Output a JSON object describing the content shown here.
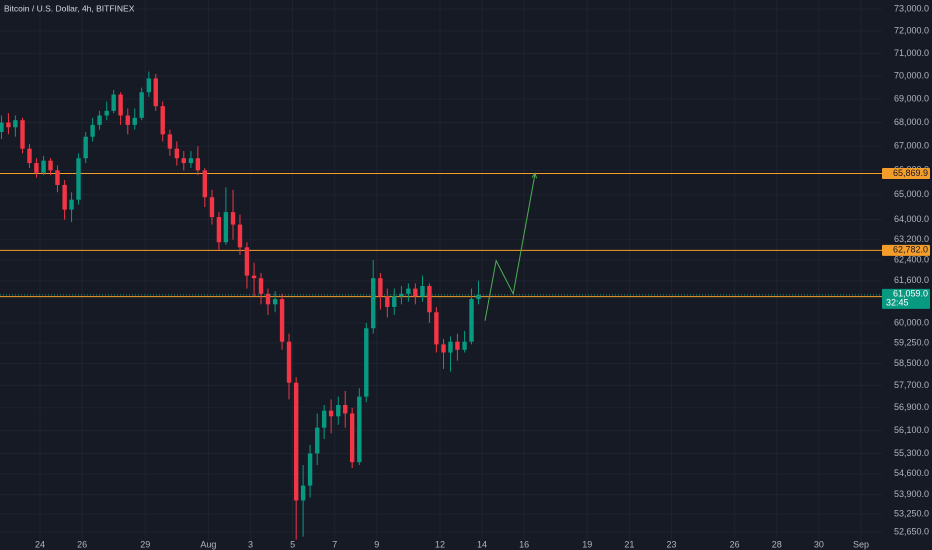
{
  "chart_data": {
    "type": "candlestick",
    "title": "Bitcoin / U.S. Dollar, 4h, BITFINEX",
    "log_scale": true,
    "grid": true,
    "up_color": "#089981",
    "down_color": "#f23645",
    "x": [
      22.17,
      22.5,
      22.83,
      23.17,
      23.5,
      23.83,
      24.17,
      24.5,
      24.83,
      25.17,
      25.5,
      25.83,
      26.17,
      26.5,
      26.83,
      27.17,
      27.5,
      27.83,
      28.17,
      28.5,
      28.83,
      29.17,
      29.5,
      29.83,
      30.17,
      30.5,
      30.83,
      31.17,
      31.5,
      31.83,
      32.17,
      32.5,
      32.83,
      33.17,
      33.5,
      33.83,
      34.17,
      34.5,
      34.83,
      35.17,
      35.5,
      35.83,
      36.17,
      36.5,
      36.83,
      37.17,
      37.5,
      37.83,
      38.17,
      38.5,
      38.83,
      39.17,
      39.5,
      39.83,
      40.17,
      40.5,
      40.83,
      41.17,
      41.5,
      41.83,
      42.17,
      42.5,
      42.83,
      43.17,
      43.5,
      43.83,
      44.17,
      44.5,
      44.83
    ],
    "open": [
      67600,
      68000,
      67800,
      68100,
      66900,
      66300,
      65900,
      66400,
      66000,
      65400,
      64400,
      64800,
      66500,
      67400,
      67900,
      68300,
      68500,
      69200,
      68300,
      67900,
      68200,
      69300,
      69900,
      68700,
      67500,
      66900,
      66500,
      66300,
      66500,
      66000,
      64900,
      64100,
      63100,
      64300,
      63800,
      62900,
      61800,
      61700,
      61100,
      60700,
      60900,
      59300,
      57800,
      53700,
      54200,
      55300,
      56200,
      56800,
      56600,
      57000,
      56700,
      55000,
      57300,
      59800,
      61700,
      61000,
      60600,
      61000,
      61100,
      61300,
      61000,
      61400,
      60400,
      59200,
      58900,
      59300,
      59000,
      59300,
      60900
    ],
    "high": [
      68300,
      68400,
      68300,
      68200,
      67100,
      66500,
      66600,
      66500,
      66200,
      65600,
      65100,
      66700,
      67600,
      68200,
      68500,
      68900,
      69400,
      69300,
      68600,
      68600,
      69500,
      70200,
      70100,
      68900,
      67700,
      67200,
      66800,
      66800,
      67000,
      66100,
      65200,
      64300,
      65300,
      65200,
      64200,
      63100,
      62300,
      61900,
      61300,
      61200,
      61100,
      59600,
      58000,
      54900,
      55600,
      56700,
      57000,
      57200,
      57300,
      57500,
      56900,
      57600,
      60000,
      62400,
      61900,
      61300,
      61300,
      61400,
      61500,
      61500,
      61800,
      61500,
      60600,
      59400,
      59500,
      59600,
      59700,
      61300,
      61600
    ],
    "low": [
      67300,
      67500,
      67400,
      66700,
      66100,
      65700,
      65800,
      65800,
      65100,
      64000,
      63900,
      64600,
      66300,
      67200,
      67700,
      68100,
      68400,
      67900,
      67500,
      67700,
      68100,
      69100,
      68500,
      67200,
      66600,
      66200,
      66000,
      66100,
      65800,
      64500,
      63800,
      62800,
      63000,
      63200,
      62600,
      61300,
      61000,
      60700,
      60300,
      60400,
      59000,
      57200,
      52400,
      52500,
      53800,
      54900,
      55800,
      56000,
      56300,
      56200,
      54800,
      54900,
      57100,
      59600,
      60500,
      60200,
      60300,
      60700,
      60800,
      60700,
      60800,
      60000,
      58900,
      58300,
      58200,
      58600,
      58900,
      59200,
      60700
    ],
    "close": [
      68000,
      67800,
      68100,
      66900,
      66300,
      65900,
      66400,
      66000,
      65400,
      64400,
      64800,
      66500,
      67400,
      67900,
      68300,
      68500,
      69200,
      68300,
      67900,
      68200,
      69300,
      69900,
      68700,
      67500,
      66900,
      66500,
      66300,
      66500,
      66000,
      64900,
      64100,
      63100,
      64300,
      63800,
      62900,
      61800,
      61700,
      61100,
      60700,
      60900,
      59300,
      57800,
      53700,
      54200,
      55300,
      56200,
      56800,
      56600,
      57000,
      56700,
      55000,
      57300,
      59800,
      61700,
      61000,
      60600,
      61000,
      61100,
      61300,
      61000,
      61400,
      60400,
      59200,
      58900,
      59300,
      59000,
      59300,
      60900,
      61059
    ],
    "xlim": [
      22.1,
      64
    ],
    "ylim": [
      52390,
      73410
    ],
    "xticks": [
      24,
      26,
      29,
      {
        "value": 32,
        "label": "Aug"
      },
      {
        "value": 34,
        "label": "3"
      },
      {
        "value": 36,
        "label": "5"
      },
      {
        "value": 38,
        "label": "7"
      },
      {
        "value": 40,
        "label": "9"
      },
      {
        "value": 43,
        "label": "12"
      },
      {
        "value": 45,
        "label": "14"
      },
      {
        "value": 47,
        "label": "16"
      },
      {
        "value": 50,
        "label": "19"
      },
      {
        "value": 52,
        "label": "21"
      },
      {
        "value": 54,
        "label": "23"
      },
      {
        "value": 57,
        "label": "26"
      },
      {
        "value": 59,
        "label": "28"
      },
      {
        "value": 61,
        "label": "30"
      },
      {
        "value": 63,
        "label": "Sep"
      }
    ],
    "yticks": [
      {
        "value": 73000,
        "label": "73,000.0"
      },
      {
        "value": 72000,
        "label": "72,000.0"
      },
      {
        "value": 71000,
        "label": "71,000.0"
      },
      {
        "value": 70000,
        "label": "70,000.0"
      },
      {
        "value": 69000,
        "label": "69,000.0"
      },
      {
        "value": 68000,
        "label": "68,000.0"
      },
      {
        "value": 67000,
        "label": "67,000.0"
      },
      {
        "value": 66000,
        "label": "66,000.0"
      },
      {
        "value": 65000,
        "label": "65,000.0"
      },
      {
        "value": 64000,
        "label": "64,000.0"
      },
      {
        "value": 63200,
        "label": "63,200.0"
      },
      {
        "value": 62400,
        "label": "62,400.0"
      },
      {
        "value": 61600,
        "label": "61,600.0"
      },
      {
        "value": 60000,
        "label": "60,000.0"
      },
      {
        "value": 59250,
        "label": "59,250.0"
      },
      {
        "value": 58500,
        "label": "58,500.0"
      },
      {
        "value": 57700,
        "label": "57,700.0"
      },
      {
        "value": 56900,
        "label": "56,900.0"
      },
      {
        "value": 56100,
        "label": "56,100.0"
      },
      {
        "value": 55300,
        "label": "55,300.0"
      },
      {
        "value": 54600,
        "label": "54,600.0"
      },
      {
        "value": 53900,
        "label": "53,900.0"
      },
      {
        "value": 53250,
        "label": "53,250.0"
      },
      {
        "value": 52650,
        "label": "52,650.0"
      }
    ],
    "levels": [
      {
        "value": 65869.9,
        "label": "65,869.9",
        "color": "#f59d2a"
      },
      {
        "value": 62782.0,
        "label": "62,782.0",
        "color": "#f59d2a"
      },
      {
        "value": 60992.8,
        "label": "60,992.8",
        "color": "#f59d2a"
      }
    ],
    "last_price": {
      "value": 61059.0,
      "label": "61,059.0",
      "countdown": "32:45",
      "color": "#089981"
    },
    "projection": {
      "color": "#4caf50",
      "x": [
        45.14,
        45.67,
        46.48,
        47.52
      ],
      "values": [
        60080,
        62380,
        61100,
        65869.9
      ]
    }
  }
}
